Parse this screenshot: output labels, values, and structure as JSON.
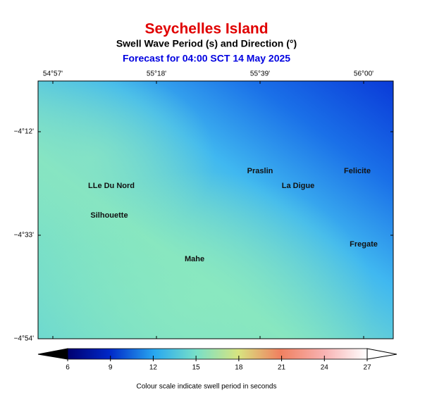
{
  "header": {
    "title": "Seychelles Island",
    "subtitle": "Swell Wave Period (s) and Direction (°)",
    "forecast": "Forecast for  04:00 SCT 14 May 2025"
  },
  "map": {
    "lon_ticks": [
      "54°57'",
      "55°18'",
      "55°39'",
      "56°00'"
    ],
    "lat_ticks": [
      "−4°12'",
      "−4°33'",
      "−4°54'"
    ],
    "places": [
      {
        "label": "LLe Du Nord"
      },
      {
        "label": "Silhouette"
      },
      {
        "label": "Praslin"
      },
      {
        "label": "La Digue"
      },
      {
        "label": "Felicite"
      },
      {
        "label": "Mahe"
      },
      {
        "label": "Fregate"
      }
    ]
  },
  "colorbar": {
    "ticks": [
      6,
      9,
      12,
      15,
      18,
      21,
      24,
      27
    ],
    "caption": "Colour scale indicate swell period in seconds"
  }
}
